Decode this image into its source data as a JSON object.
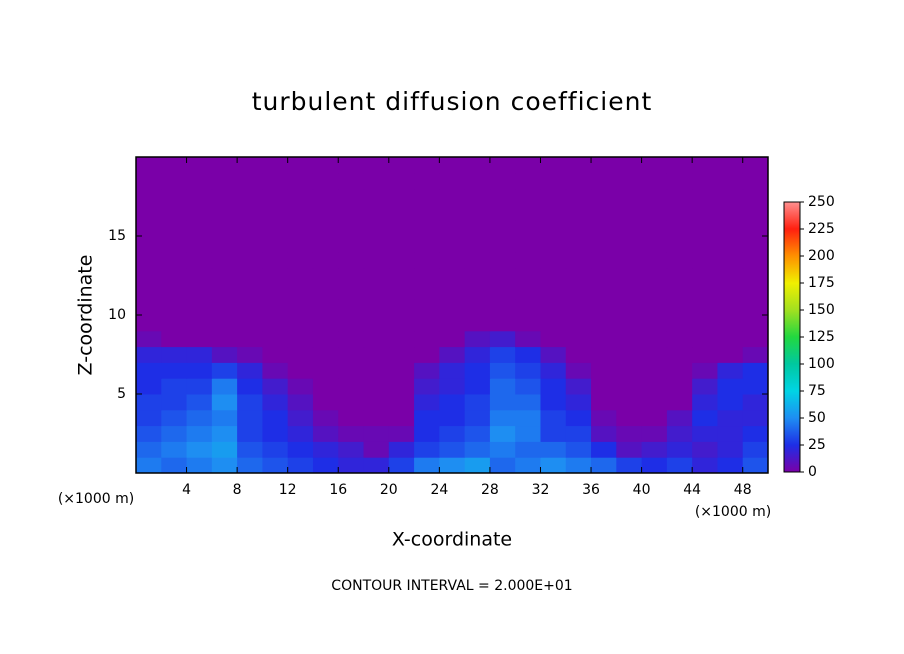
{
  "chart_data": {
    "type": "heatmap",
    "title": "turbulent diffusion coefficient",
    "xlabel": "X-coordinate",
    "ylabel": "Z-coordinate",
    "xunit": "(×1000 m)",
    "yunit": "(×1000 m)",
    "footer": "CONTOUR INTERVAL = 2.000E+01",
    "xlim": [
      0,
      50
    ],
    "ylim": [
      0,
      20
    ],
    "xticks": [
      4,
      8,
      12,
      16,
      20,
      24,
      28,
      32,
      36,
      40,
      44,
      48
    ],
    "yticks": [
      5,
      10,
      15
    ],
    "x": [
      1,
      3,
      5,
      7,
      9,
      11,
      13,
      15,
      17,
      19,
      21,
      23,
      25,
      27,
      29,
      31,
      33,
      35,
      37,
      39,
      41,
      43,
      45,
      47,
      49
    ],
    "y": [
      0.5,
      1.5,
      2.5,
      3.5,
      4.5,
      5.5,
      6.5,
      7.5,
      8.5,
      9.5,
      10.5,
      11.5,
      12.5,
      13.5,
      14.5,
      15.5,
      16.5,
      17.5,
      18.5,
      19.5
    ],
    "values": [
      [
        45,
        40,
        45,
        50,
        40,
        35,
        30,
        25,
        20,
        20,
        30,
        45,
        50,
        55,
        40,
        45,
        50,
        45,
        40,
        30,
        25,
        30,
        20,
        25,
        35
      ],
      [
        40,
        45,
        50,
        55,
        35,
        30,
        25,
        20,
        15,
        5,
        20,
        30,
        35,
        40,
        45,
        40,
        40,
        35,
        25,
        10,
        15,
        20,
        15,
        20,
        30
      ],
      [
        35,
        40,
        45,
        50,
        30,
        25,
        20,
        10,
        5,
        5,
        5,
        25,
        30,
        35,
        50,
        45,
        30,
        30,
        10,
        5,
        5,
        15,
        20,
        20,
        25
      ],
      [
        30,
        35,
        40,
        45,
        30,
        25,
        15,
        5,
        0,
        0,
        0,
        25,
        25,
        30,
        45,
        45,
        30,
        25,
        5,
        0,
        0,
        10,
        25,
        20,
        20
      ],
      [
        30,
        30,
        35,
        50,
        30,
        20,
        10,
        0,
        0,
        0,
        0,
        20,
        25,
        30,
        40,
        40,
        25,
        20,
        0,
        0,
        0,
        0,
        20,
        25,
        20
      ],
      [
        25,
        30,
        30,
        45,
        25,
        15,
        5,
        0,
        0,
        0,
        0,
        15,
        20,
        25,
        40,
        35,
        25,
        15,
        0,
        0,
        0,
        0,
        15,
        25,
        25
      ],
      [
        25,
        25,
        25,
        30,
        20,
        5,
        0,
        0,
        0,
        0,
        0,
        10,
        20,
        25,
        35,
        30,
        20,
        5,
        0,
        0,
        0,
        0,
        5,
        20,
        25
      ],
      [
        20,
        20,
        20,
        10,
        5,
        0,
        0,
        0,
        0,
        0,
        0,
        0,
        10,
        20,
        30,
        25,
        10,
        0,
        0,
        0,
        0,
        0,
        0,
        0,
        5
      ],
      [
        5,
        0,
        0,
        0,
        0,
        0,
        0,
        0,
        0,
        0,
        0,
        0,
        0,
        10,
        15,
        5,
        0,
        0,
        0,
        0,
        0,
        0,
        0,
        0,
        0
      ],
      [
        0,
        0,
        0,
        0,
        0,
        0,
        0,
        0,
        0,
        0,
        0,
        0,
        0,
        0,
        0,
        0,
        0,
        0,
        0,
        0,
        0,
        0,
        0,
        0,
        0
      ],
      [
        0,
        0,
        0,
        0,
        0,
        0,
        0,
        0,
        0,
        0,
        0,
        0,
        0,
        0,
        0,
        0,
        0,
        0,
        0,
        0,
        0,
        0,
        0,
        0,
        0
      ],
      [
        0,
        0,
        0,
        0,
        0,
        0,
        0,
        0,
        0,
        0,
        0,
        0,
        0,
        0,
        0,
        0,
        0,
        0,
        0,
        0,
        0,
        0,
        0,
        0,
        0
      ],
      [
        0,
        0,
        0,
        0,
        0,
        0,
        0,
        0,
        0,
        0,
        0,
        0,
        0,
        0,
        0,
        0,
        0,
        0,
        0,
        0,
        0,
        0,
        0,
        0,
        0
      ],
      [
        0,
        0,
        0,
        0,
        0,
        0,
        0,
        0,
        0,
        0,
        0,
        0,
        0,
        0,
        0,
        0,
        0,
        0,
        0,
        0,
        0,
        0,
        0,
        0,
        0
      ],
      [
        0,
        0,
        0,
        0,
        0,
        0,
        0,
        0,
        0,
        0,
        0,
        0,
        0,
        0,
        0,
        0,
        0,
        0,
        0,
        0,
        0,
        0,
        0,
        0,
        0
      ],
      [
        0,
        0,
        0,
        0,
        0,
        0,
        0,
        0,
        0,
        0,
        0,
        0,
        0,
        0,
        0,
        0,
        0,
        0,
        0,
        0,
        0,
        0,
        0,
        0,
        0
      ],
      [
        0,
        0,
        0,
        0,
        0,
        0,
        0,
        0,
        0,
        0,
        0,
        0,
        0,
        0,
        0,
        0,
        0,
        0,
        0,
        0,
        0,
        0,
        0,
        0,
        0
      ],
      [
        0,
        0,
        0,
        0,
        0,
        0,
        0,
        0,
        0,
        0,
        0,
        0,
        0,
        0,
        0,
        0,
        0,
        0,
        0,
        0,
        0,
        0,
        0,
        0,
        0
      ],
      [
        0,
        0,
        0,
        0,
        0,
        0,
        0,
        0,
        0,
        0,
        0,
        0,
        0,
        0,
        0,
        0,
        0,
        0,
        0,
        0,
        0,
        0,
        0,
        0,
        0
      ],
      [
        0,
        0,
        0,
        0,
        0,
        0,
        0,
        0,
        0,
        0,
        0,
        0,
        0,
        0,
        0,
        0,
        0,
        0,
        0,
        0,
        0,
        0,
        0,
        0,
        0
      ]
    ],
    "clim": [
      0,
      250
    ],
    "cticks": [
      0,
      25,
      50,
      75,
      100,
      125,
      150,
      175,
      200,
      225,
      250
    ],
    "colors": [
      "#7a00a8",
      "#1e2ee6",
      "#1e8ef2",
      "#00d4e4",
      "#00c8a0",
      "#22d840",
      "#a2e020",
      "#f0f000",
      "#ff9000",
      "#ff2010",
      "#ff9090"
    ]
  }
}
